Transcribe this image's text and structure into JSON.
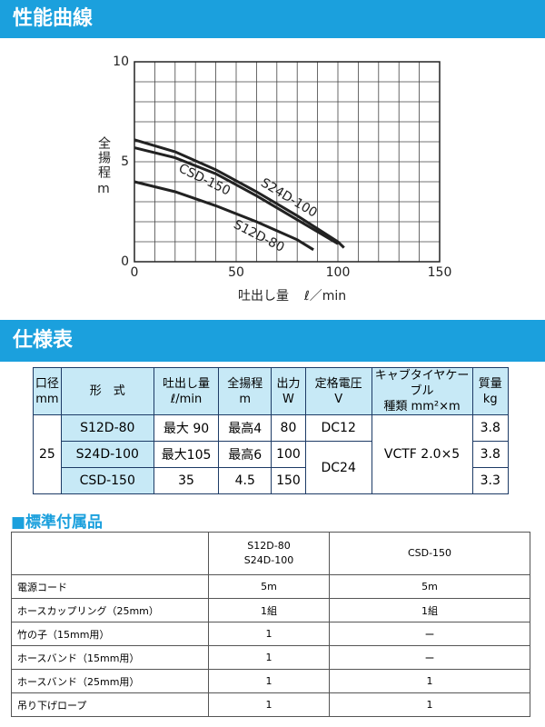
{
  "section1": {
    "title": "性能曲線"
  },
  "chart_data": {
    "type": "line",
    "xlabel": "吐出し量",
    "xunit": "ℓ／min",
    "ylabel": "全揚程",
    "yunit": "m",
    "xlim": [
      0,
      150
    ],
    "ylim": [
      0,
      10
    ],
    "xticks": [
      0,
      50,
      100,
      150
    ],
    "yticks": [
      0,
      5,
      10
    ],
    "xgrid": [
      0,
      10,
      20,
      30,
      40,
      50,
      60,
      70,
      80,
      90,
      100,
      110,
      120,
      130,
      140,
      150
    ],
    "ygrid": [
      0,
      1,
      2,
      3,
      4,
      5,
      6,
      7,
      8,
      9,
      10
    ],
    "series": [
      {
        "name": "CSD-150",
        "color": "#222222",
        "x": [
          0,
          20,
          40,
          60,
          80,
          100
        ],
        "values": [
          5.7,
          5.2,
          4.4,
          3.3,
          2.1,
          0.9
        ]
      },
      {
        "name": "S24D-100",
        "color": "#222222",
        "x": [
          0,
          20,
          40,
          60,
          80,
          100,
          103
        ],
        "values": [
          6.1,
          5.5,
          4.6,
          3.5,
          2.3,
          1.0,
          0.7
        ]
      },
      {
        "name": "S12D-80",
        "color": "#222222",
        "x": [
          0,
          20,
          40,
          60,
          80,
          88
        ],
        "values": [
          4.0,
          3.5,
          2.8,
          2.0,
          1.1,
          0.6
        ]
      }
    ]
  },
  "section2": {
    "title": "仕様表"
  },
  "spec_table": {
    "header": [
      [
        "口径",
        "mm"
      ],
      [
        "形　式"
      ],
      [
        "吐出し量",
        "ℓ/min"
      ],
      [
        "全揚程",
        "m"
      ],
      [
        "出力",
        "W"
      ],
      [
        "定格電圧",
        "V"
      ],
      [
        "キャブタイヤケーブル",
        "種類 mm²×m"
      ],
      [
        "質量",
        "kg"
      ]
    ],
    "bore": "25",
    "models": [
      "S12D-80",
      "S24D-100",
      "CSD-150"
    ],
    "flow": [
      "最大 90",
      "最大105",
      "35"
    ],
    "head": [
      "最高4",
      "最高6",
      "4.5"
    ],
    "output": [
      "80",
      "100",
      "150"
    ],
    "voltage": [
      "DC12",
      "DC24"
    ],
    "cable": "VCTF 2.0×5",
    "mass": [
      "3.8",
      "3.8",
      "3.3"
    ]
  },
  "section3": {
    "title": "■標準付属品"
  },
  "accessory_table": {
    "header": [
      [
        "S12D-80",
        "S24D-100"
      ],
      [
        "CSD-150"
      ]
    ],
    "rows": [
      [
        "電源コード",
        "5m",
        "5m"
      ],
      [
        "ホースカップリング（25mm）",
        "1組",
        "1組"
      ],
      [
        "竹の子（15mm用）",
        "1",
        "ー"
      ],
      [
        "ホースバンド（15mm用）",
        "1",
        "ー"
      ],
      [
        "ホースバンド（25mm用）",
        "1",
        "1"
      ],
      [
        "吊り下げロープ",
        "1",
        "1"
      ]
    ]
  }
}
